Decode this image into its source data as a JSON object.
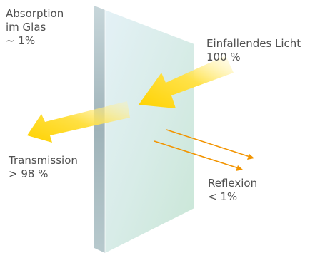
{
  "labels": {
    "absorption": {
      "line1": "Absorption",
      "line2": "im Glas",
      "line3": "~ 1%"
    },
    "incident": {
      "line1": "Einfallendes Licht",
      "line2": "100 %"
    },
    "transmission": {
      "line1": "Transmission",
      "line2": "> 98 %"
    },
    "reflection": {
      "line1": "Reflexion",
      "line2": "< 1%"
    }
  },
  "colors": {
    "glass_face": "#d9ecec",
    "glass_edge": "#a9bdc4",
    "light_yellow": "#ffd700",
    "reflection_orange": "#f29400",
    "text": "#505050"
  }
}
